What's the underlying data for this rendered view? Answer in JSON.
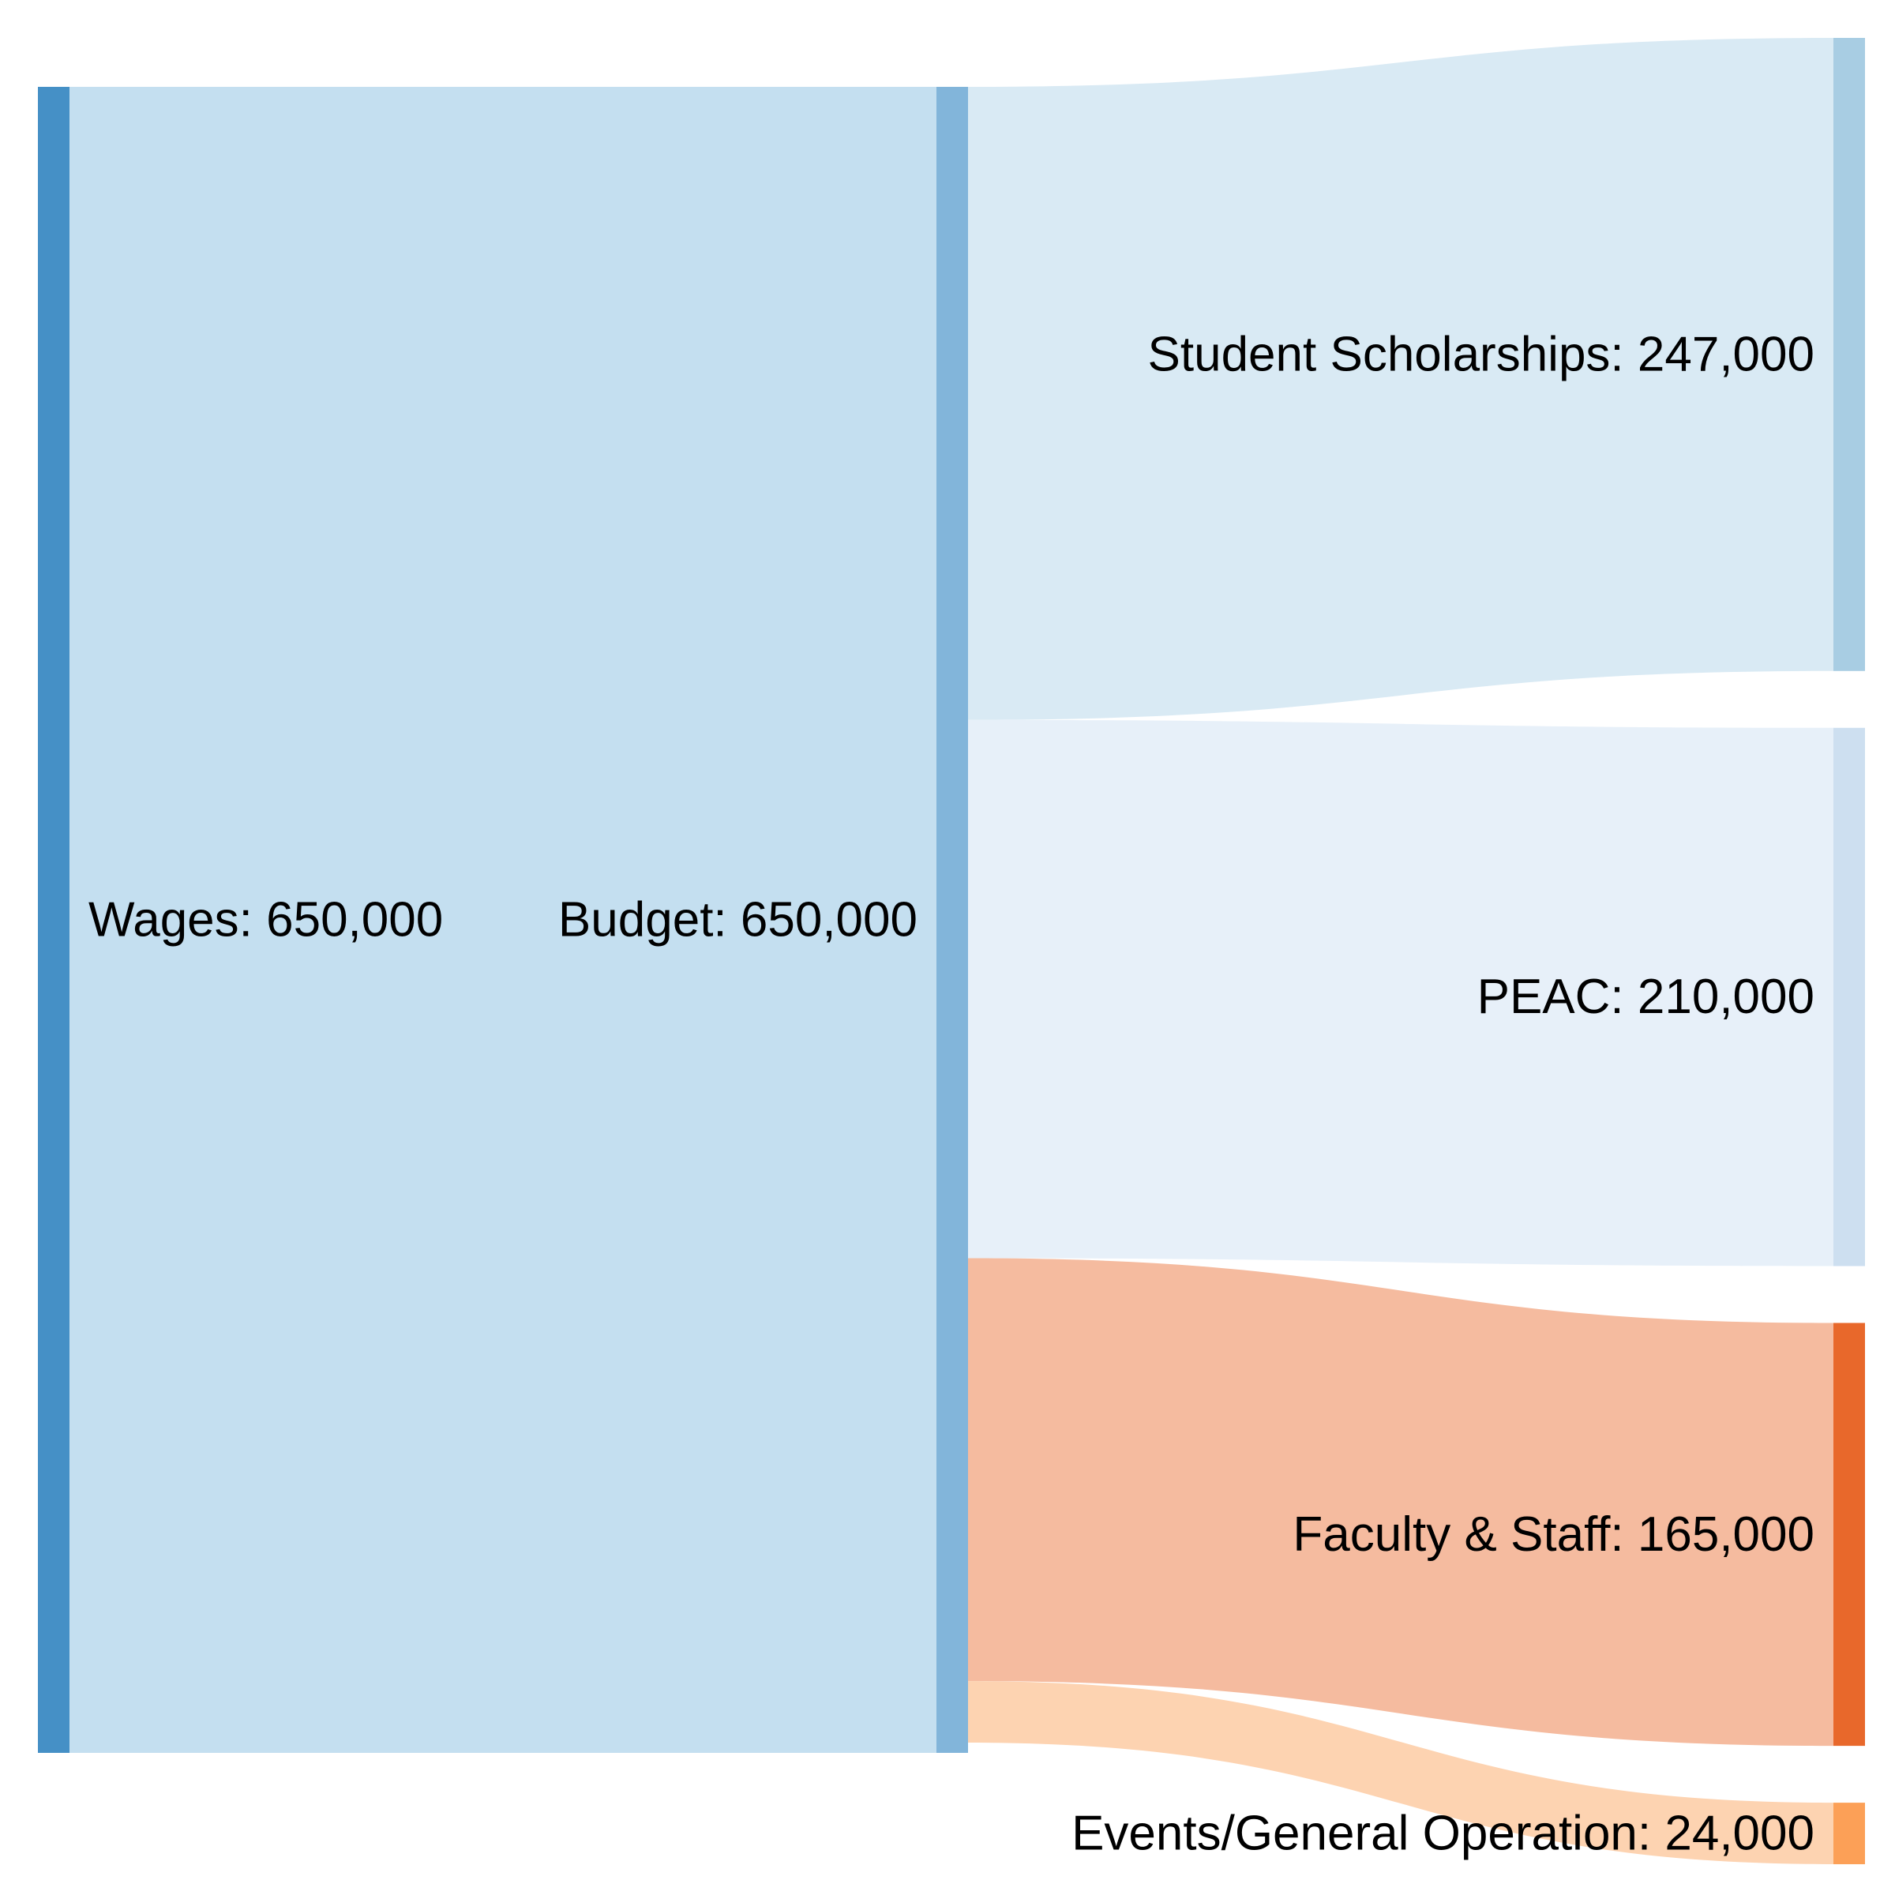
{
  "chart_data": {
    "type": "sankey",
    "title": "",
    "nodes": [
      {
        "id": "wages",
        "name": "Wages",
        "value": 650000,
        "label": "Wages: 650,000",
        "color": "#4590c6"
      },
      {
        "id": "budget",
        "name": "Budget",
        "value": 650000,
        "label": "Budget: 650,000",
        "color": "#82b5da"
      },
      {
        "id": "scholarships",
        "name": "Student Scholarships",
        "value": 247000,
        "label": "Student Scholarships: 247,000",
        "color": "#a8cde3"
      },
      {
        "id": "peac",
        "name": "PEAC",
        "value": 210000,
        "label": "PEAC: 210,000",
        "color": "#cddff0"
      },
      {
        "id": "faculty",
        "name": "Faculty & Staff",
        "value": 165000,
        "label": "Faculty & Staff: 165,000",
        "color": "#e8682b"
      },
      {
        "id": "events",
        "name": "Events/General Operation",
        "value": 24000,
        "label": "Events/General Operation: 24,000",
        "color": "#fca057"
      }
    ],
    "links": [
      {
        "source": "wages",
        "target": "budget",
        "value": 650000,
        "color": "#c4dff0"
      },
      {
        "source": "budget",
        "target": "scholarships",
        "value": 247000,
        "color": "#d9eaf4"
      },
      {
        "source": "budget",
        "target": "peac",
        "value": 210000,
        "color": "#e7f0f9"
      },
      {
        "source": "budget",
        "target": "faculty",
        "value": 165000,
        "color": "#f5bb9f"
      },
      {
        "source": "budget",
        "target": "events",
        "value": 24000,
        "color": "#fdd3b1"
      }
    ]
  }
}
